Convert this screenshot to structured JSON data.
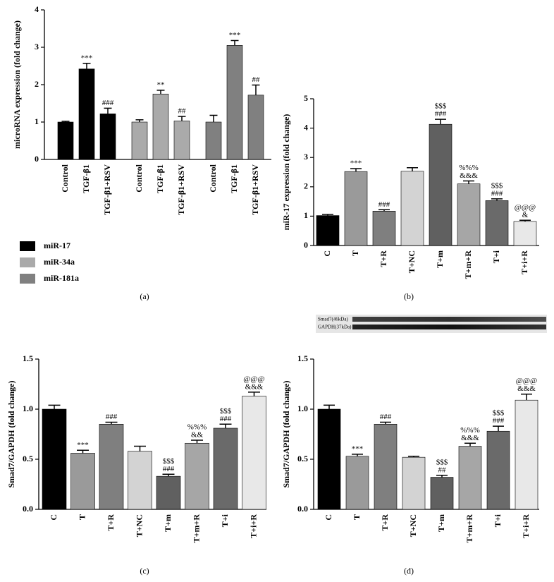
{
  "chart_data": [
    {
      "type": "bar",
      "panel_label": "(a)",
      "y_label": "microRNA expression (fold change)",
      "categories": [
        "Control",
        "TGF-β1",
        "TGF-β1+RSV"
      ],
      "series": [
        {
          "name": "miR-17",
          "color": "#000000",
          "values": [
            1.0,
            2.42,
            1.22
          ],
          "errors": [
            0.02,
            0.15,
            0.15
          ],
          "annotations": [
            null,
            [
              "***"
            ],
            [
              "###"
            ]
          ]
        },
        {
          "name": "miR-34a",
          "color": "#aaaaaa",
          "values": [
            1.0,
            1.75,
            1.03
          ],
          "errors": [
            0.06,
            0.1,
            0.12
          ],
          "annotations": [
            null,
            [
              "**"
            ],
            [
              "##"
            ]
          ]
        },
        {
          "name": "miR-181a",
          "color": "#808080",
          "values": [
            1.0,
            3.05,
            1.72
          ],
          "errors": [
            0.18,
            0.13,
            0.27
          ],
          "annotations": [
            null,
            [
              "***"
            ],
            [
              "##"
            ]
          ]
        }
      ],
      "ylim": [
        0,
        4
      ],
      "yticks": [
        0,
        1,
        2,
        3,
        4
      ]
    },
    {
      "type": "bar",
      "panel_label": "(b)",
      "y_label": "miR-17 expression (fold change)",
      "categories": [
        "C",
        "T",
        "T+R",
        "T+NC",
        "T+m",
        "T+m+R",
        "T+i",
        "T+i+R"
      ],
      "colors": [
        "#000000",
        "#9a9a9a",
        "#7f7f7f",
        "#d3d3d3",
        "#606060",
        "#a6a6a6",
        "#6a6a6a",
        "#e8e8e8"
      ],
      "values": [
        1.02,
        2.52,
        1.17,
        2.53,
        4.13,
        2.1,
        1.53,
        0.82
      ],
      "errors": [
        0.04,
        0.1,
        0.05,
        0.12,
        0.17,
        0.1,
        0.06,
        0.04
      ],
      "annotations": [
        null,
        [
          "***"
        ],
        [
          "###"
        ],
        null,
        [
          "$$$",
          "###"
        ],
        [
          "%%%",
          "&&&"
        ],
        [
          "$$$",
          "###"
        ],
        [
          "@@@",
          "&"
        ]
      ],
      "ylim": [
        0,
        5
      ],
      "yticks": [
        0,
        1,
        2,
        3,
        4,
        5
      ]
    },
    {
      "type": "bar",
      "panel_label": "(c)",
      "y_label": "Smad7/GAPDH (fold change)",
      "categories": [
        "C",
        "T",
        "T+R",
        "T+NC",
        "T+m",
        "T+m+R",
        "T+i",
        "T+i+R"
      ],
      "colors": [
        "#000000",
        "#9a9a9a",
        "#7f7f7f",
        "#d3d3d3",
        "#606060",
        "#a6a6a6",
        "#6a6a6a",
        "#e8e8e8"
      ],
      "values": [
        1.0,
        0.56,
        0.85,
        0.58,
        0.33,
        0.66,
        0.81,
        1.13
      ],
      "errors": [
        0.04,
        0.03,
        0.02,
        0.05,
        0.02,
        0.03,
        0.04,
        0.04
      ],
      "annotations": [
        null,
        [
          "***"
        ],
        [
          "###"
        ],
        null,
        [
          "$$$",
          "###"
        ],
        [
          "%%%",
          "&&"
        ],
        [
          "$$$",
          "###"
        ],
        [
          "@@@",
          "&&&"
        ]
      ],
      "ylim": [
        0,
        1.5
      ],
      "yticks": [
        {
          "value": 0,
          "label": "0.0"
        },
        {
          "value": 0.5,
          "label": "0.5"
        },
        {
          "value": 1,
          "label": "1.0"
        },
        {
          "value": 1.5,
          "label": "1.5"
        }
      ]
    },
    {
      "type": "bar",
      "panel_label": "(d)",
      "y_label": "Smad7/GAPDH (fold change)",
      "blot_labels": [
        "Smad7(46kDa)",
        "GAPDH(37kDa)"
      ],
      "categories": [
        "C",
        "T",
        "T+R",
        "T+NC",
        "T+m",
        "T+m+R",
        "T+i",
        "T+i+R"
      ],
      "colors": [
        "#000000",
        "#9a9a9a",
        "#7f7f7f",
        "#d3d3d3",
        "#606060",
        "#a6a6a6",
        "#6a6a6a",
        "#e8e8e8"
      ],
      "values": [
        1.0,
        0.53,
        0.85,
        0.52,
        0.32,
        0.63,
        0.78,
        1.09
      ],
      "errors": [
        0.04,
        0.02,
        0.02,
        0.01,
        0.02,
        0.03,
        0.05,
        0.06
      ],
      "annotations": [
        null,
        [
          "***"
        ],
        [
          "###"
        ],
        null,
        [
          "$$$",
          "##"
        ],
        [
          "%%%",
          "&&&"
        ],
        [
          "$$$",
          "###"
        ],
        [
          "@@@",
          "&&&"
        ]
      ],
      "ylim": [
        0,
        1.5
      ],
      "yticks": [
        {
          "value": 0,
          "label": "0.0"
        },
        {
          "value": 0.5,
          "label": "0.5"
        },
        {
          "value": 1,
          "label": "1.0"
        },
        {
          "value": 1.5,
          "label": "1.5"
        }
      ]
    }
  ]
}
